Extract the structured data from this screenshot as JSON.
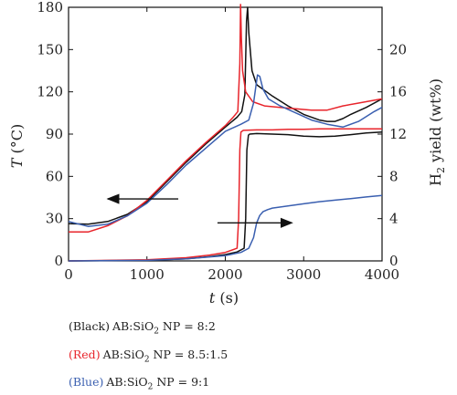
{
  "chart_data": {
    "type": "line",
    "xlabel": "t (s)",
    "ylabel_left": "T (°C)",
    "ylabel_right": "H2 yield (wt%)",
    "xlim": [
      0,
      4000
    ],
    "ylim_left": [
      0,
      180
    ],
    "ylim_right": [
      0,
      24
    ],
    "xticks": [
      0,
      1000,
      2000,
      3000,
      4000
    ],
    "yticks_left": [
      0,
      30,
      60,
      90,
      120,
      150,
      180
    ],
    "yticks_right": [
      0,
      4,
      8,
      12,
      16,
      20
    ],
    "grid": false,
    "legend_placement": "below",
    "series": [
      {
        "name": "(Black) AB:SiO2 NP = 8:2",
        "color": "#111111",
        "axis": "left",
        "x": [
          0,
          250,
          500,
          750,
          1000,
          1250,
          1500,
          1750,
          2000,
          2150,
          2210,
          2250,
          2270,
          2285,
          2300,
          2340,
          2400,
          2600,
          2800,
          3000,
          3200,
          3300,
          3400,
          3500,
          3600,
          3800,
          4000
        ],
        "y": [
          26.5,
          26,
          28,
          33,
          42,
          56,
          70,
          83,
          95,
          102,
          106,
          118,
          170,
          180,
          162,
          135,
          125,
          117,
          110,
          104,
          100,
          99,
          99,
          101,
          104,
          109,
          115
        ]
      },
      {
        "name": "(Red) AB:SiO2 NP = 8.5:1.5",
        "color": "#e8242b",
        "axis": "left",
        "x": [
          0,
          250,
          500,
          750,
          1000,
          1250,
          1500,
          1750,
          2000,
          2100,
          2160,
          2185,
          2195,
          2205,
          2220,
          2260,
          2350,
          2500,
          2700,
          2900,
          3100,
          3300,
          3500,
          3700,
          3900,
          4000
        ],
        "y": [
          20.5,
          20.5,
          25,
          32,
          43,
          57,
          71,
          84,
          96,
          102,
          106,
          140,
          182,
          158,
          135,
          120,
          113,
          110,
          109,
          108,
          107,
          107,
          110,
          112,
          114,
          115
        ]
      },
      {
        "name": "(Blue) AB:SiO2 NP = 9:1",
        "color": "#3a5fb0",
        "axis": "left",
        "x": [
          0,
          250,
          500,
          750,
          1000,
          1250,
          1500,
          1750,
          2000,
          2200,
          2300,
          2360,
          2410,
          2440,
          2480,
          2550,
          2700,
          2900,
          3100,
          3300,
          3500,
          3700,
          3900,
          4000
        ],
        "y": [
          28,
          24.5,
          26,
          32,
          41,
          54,
          68,
          80,
          92,
          97,
          100,
          112,
          132,
          131,
          122,
          115,
          110,
          105,
          100,
          97,
          95,
          99,
          106,
          109
        ]
      },
      {
        "name": "(Black) AB:SiO2 NP = 8:2",
        "color": "#111111",
        "axis": "right",
        "x": [
          0,
          1000,
          1500,
          1800,
          2000,
          2150,
          2240,
          2260,
          2275,
          2295,
          2310,
          2400,
          2600,
          2800,
          3000,
          3200,
          3400,
          3600,
          3800,
          4000
        ],
        "y": [
          0,
          0.05,
          0.2,
          0.4,
          0.6,
          0.85,
          1.2,
          4,
          10.5,
          11.9,
          12,
          12.05,
          12,
          11.95,
          11.8,
          11.75,
          11.8,
          11.95,
          12.1,
          12.2
        ]
      },
      {
        "name": "(Red) AB:SiO2 NP = 8.5:1.5",
        "color": "#e8242b",
        "axis": "right",
        "x": [
          0,
          1000,
          1500,
          1800,
          2000,
          2150,
          2170,
          2185,
          2200,
          2230,
          2400,
          2600,
          2800,
          3000,
          3200,
          3400,
          3600,
          3800,
          4000
        ],
        "y": [
          0,
          0.1,
          0.3,
          0.55,
          0.8,
          1.2,
          4,
          10.5,
          12.2,
          12.35,
          12.4,
          12.4,
          12.45,
          12.45,
          12.5,
          12.5,
          12.5,
          12.5,
          12.5
        ]
      },
      {
        "name": "(Blue) AB:SiO2 NP = 9:1",
        "color": "#3a5fb0",
        "axis": "right",
        "x": [
          0,
          1000,
          1500,
          2000,
          2200,
          2300,
          2360,
          2400,
          2440,
          2480,
          2540,
          2600,
          2800,
          3000,
          3200,
          3400,
          3600,
          3800,
          4000
        ],
        "y": [
          0,
          0.05,
          0.2,
          0.5,
          0.8,
          1.2,
          2.2,
          3.6,
          4.3,
          4.65,
          4.85,
          5.0,
          5.2,
          5.4,
          5.6,
          5.75,
          5.9,
          6.05,
          6.2
        ]
      }
    ],
    "annotations": [
      {
        "type": "arrow",
        "direction": "left",
        "points_to_axis": "left",
        "x_from": 1400,
        "x_to": 500,
        "y_axis": "left",
        "y": 44
      },
      {
        "type": "arrow",
        "direction": "right",
        "points_to_axis": "right",
        "x_from": 1900,
        "x_to": 2850,
        "y_axis": "left",
        "y": 27
      }
    ]
  },
  "legend": [
    {
      "tag": "(Black)",
      "tag_color": "#222222",
      "text": "AB:SiO",
      "sub": "2",
      "rest": " NP = 8:2"
    },
    {
      "tag": "(Red)",
      "tag_color": "#e8242b",
      "text": "AB:SiO",
      "sub": "2",
      "rest": " NP = 8.5:1.5"
    },
    {
      "tag": "(Blue)",
      "tag_color": "#3a5fb0",
      "text": "AB:SiO",
      "sub": "2",
      "rest": " NP = 9:1"
    }
  ]
}
